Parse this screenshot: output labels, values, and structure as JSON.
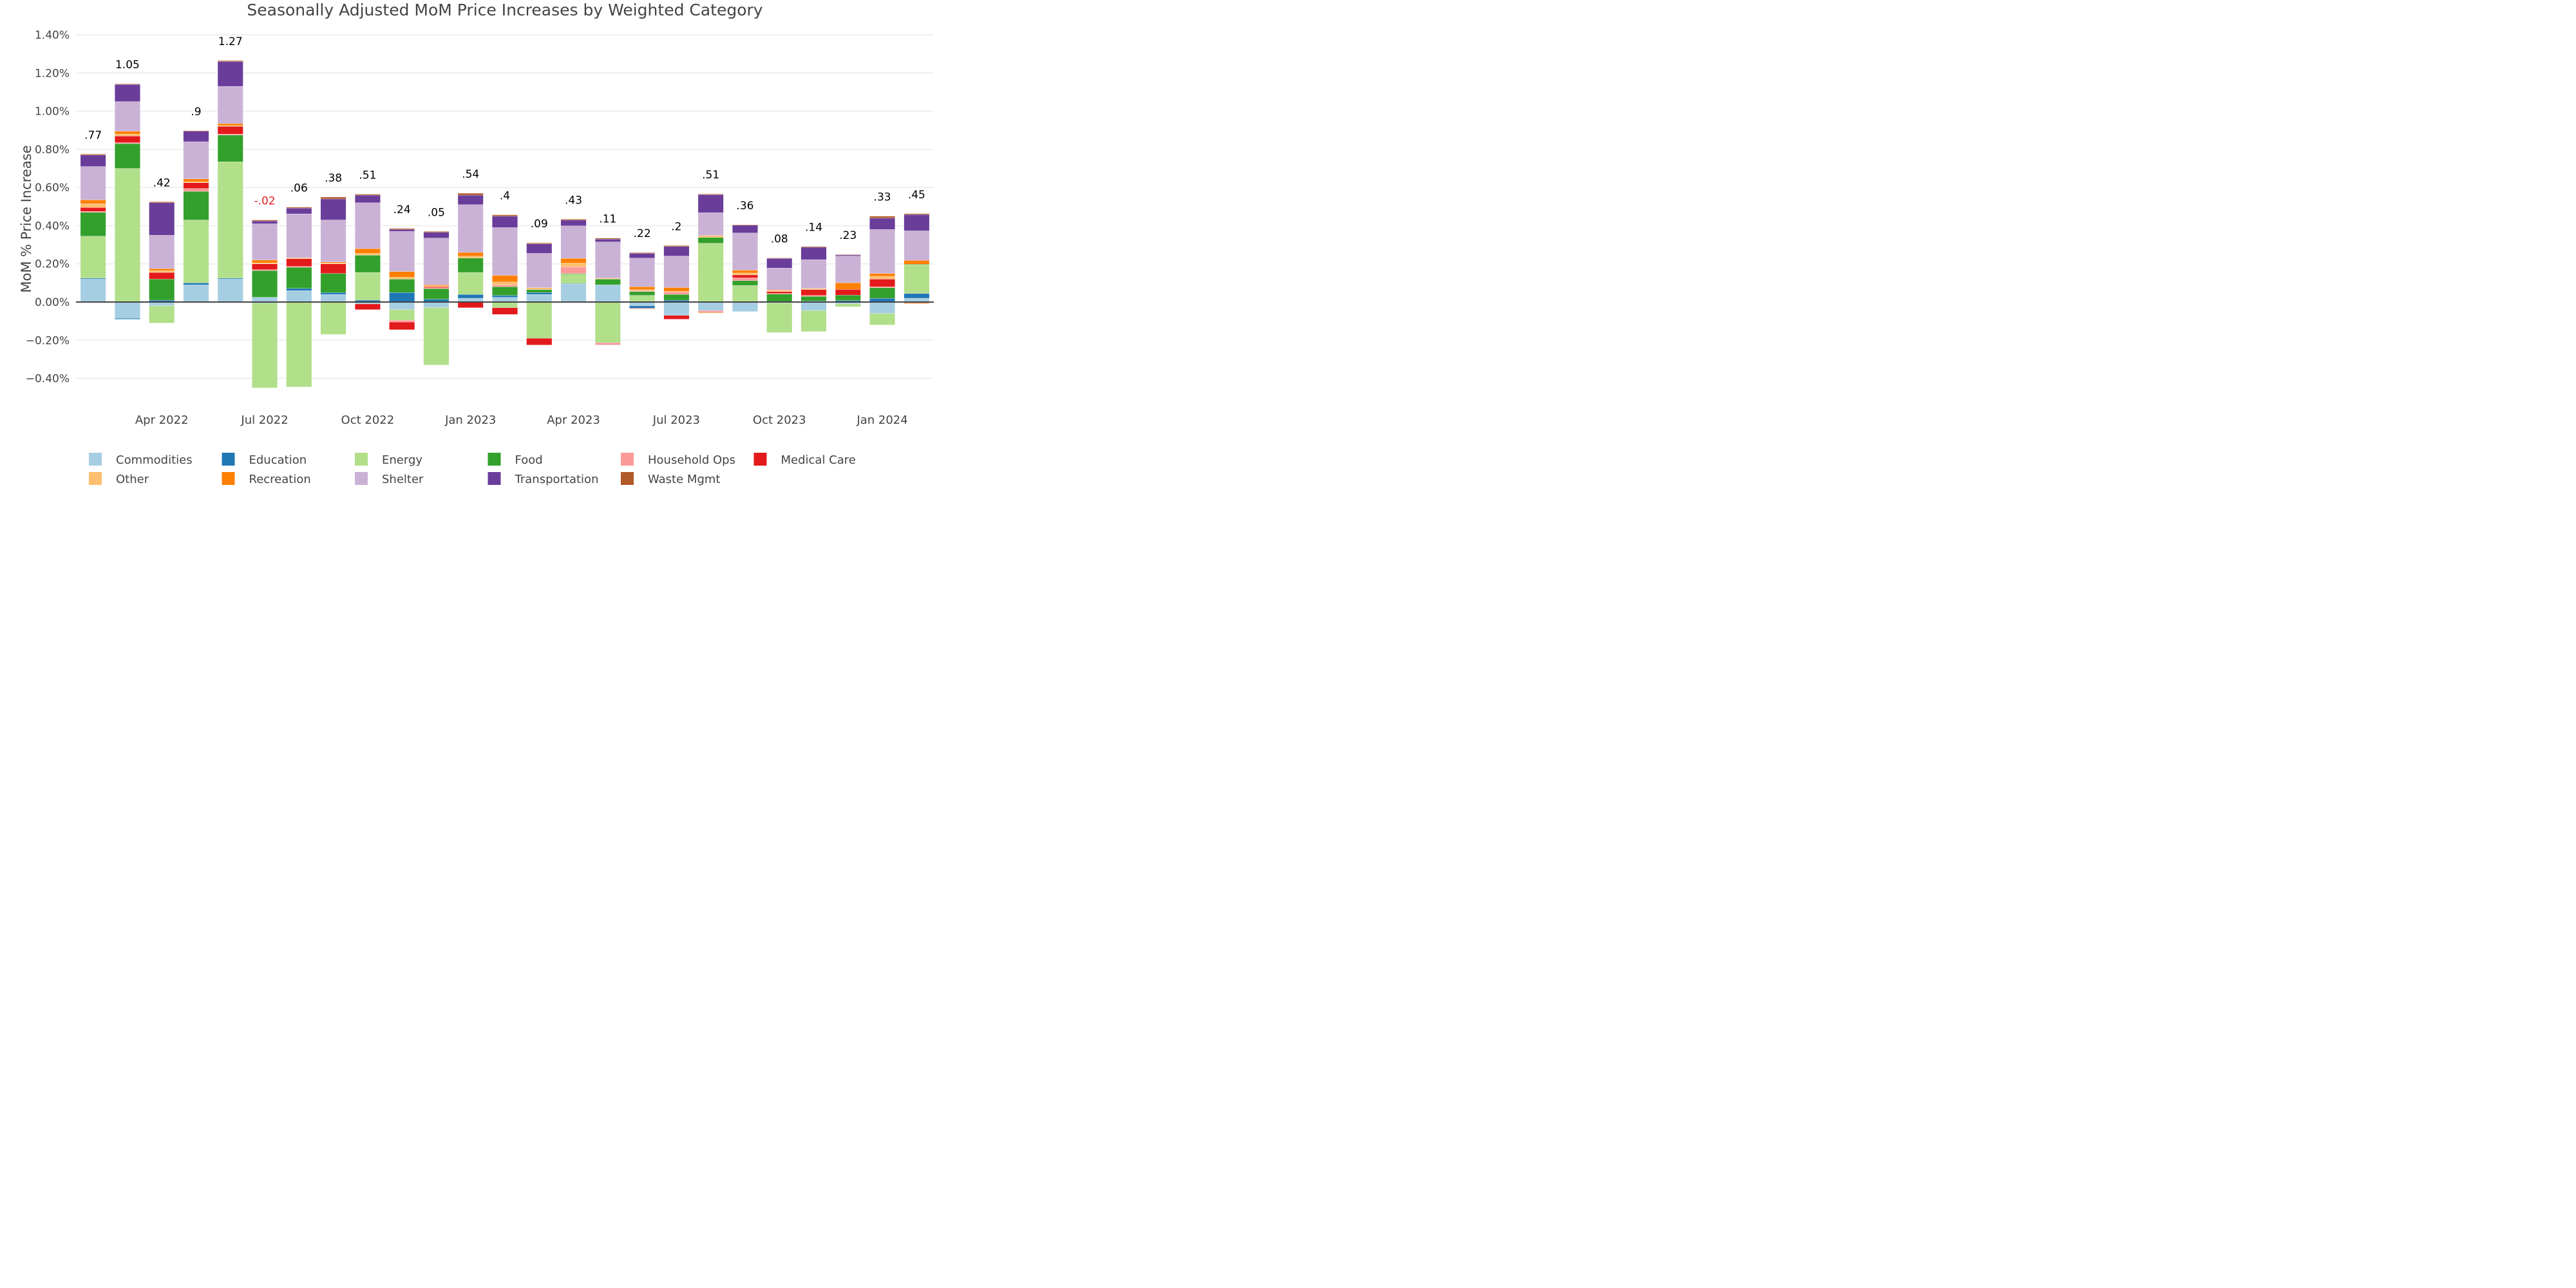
{
  "chart_data": {
    "type": "bar",
    "stacked": true,
    "title": "Seasonally Adjusted MoM Price Increases by Weighted Category",
    "xlabel": "",
    "ylabel": "MoM % Price Increase",
    "ylim": [
      -0.5,
      1.45
    ],
    "yticks": [
      -0.4,
      -0.2,
      0.0,
      0.2,
      0.4,
      0.6,
      0.8,
      1.0,
      1.2,
      1.4
    ],
    "ytick_labels": [
      "−0.40%",
      "−0.20%",
      "0.00%",
      "0.20%",
      "0.40%",
      "0.60%",
      "0.80%",
      "1.00%",
      "1.20%",
      "1.40%"
    ],
    "grid": true,
    "legend_position": "bottom",
    "categories": [
      "Feb 2022",
      "Mar 2022",
      "Apr 2022",
      "May 2022",
      "Jun 2022",
      "Jul 2022",
      "Aug 2022",
      "Sep 2022",
      "Oct 2022",
      "Nov 2022",
      "Dec 2022",
      "Jan 2023",
      "Feb 2023",
      "Mar 2023",
      "Apr 2023",
      "May 2023",
      "Jun 2023",
      "Jul 2023",
      "Aug 2023",
      "Sep 2023",
      "Oct 2023",
      "Nov 2023",
      "Dec 2023",
      "Jan 2024",
      "Feb 2024"
    ],
    "xtick_labels": [
      {
        "index": 2,
        "label": "Apr 2022"
      },
      {
        "index": 5,
        "label": "Jul 2022"
      },
      {
        "index": 8,
        "label": "Oct 2022"
      },
      {
        "index": 11,
        "label": "Jan 2023"
      },
      {
        "index": 14,
        "label": "Apr 2023"
      },
      {
        "index": 17,
        "label": "Jul 2023"
      },
      {
        "index": 20,
        "label": "Oct 2023"
      },
      {
        "index": 23,
        "label": "Jan 2024"
      }
    ],
    "totals": [
      ".77",
      "1.05",
      ".42",
      ".9",
      "1.27",
      "-.02",
      ".06",
      ".38",
      ".51",
      ".24",
      ".05",
      ".54",
      ".4",
      ".09",
      ".43",
      ".11",
      ".22",
      ".2",
      ".51",
      ".36",
      ".08",
      ".14",
      ".23",
      ".33",
      ".45"
    ],
    "total_colors": {
      "positive": "#000000",
      "negative": "#e31a1c"
    },
    "series": [
      {
        "name": "Commodities",
        "color": "#a6cee3",
        "values": [
          0.12,
          -0.085,
          -0.02,
          0.09,
          0.12,
          0.025,
          0.06,
          0.04,
          -0.01,
          -0.04,
          -0.03,
          0.02,
          0.025,
          0.04,
          0.095,
          0.09,
          -0.02,
          -0.07,
          -0.045,
          -0.05,
          -0.005,
          -0.045,
          -0.01,
          -0.06,
          0.02
        ]
      },
      {
        "name": "Education",
        "color": "#1f78b4",
        "values": [
          0.005,
          -0.005,
          0.01,
          0.01,
          0.005,
          -0.005,
          0.012,
          0.01,
          0.01,
          0.05,
          0.015,
          0.02,
          0.01,
          0.01,
          0.002,
          -0.003,
          -0.012,
          0.01,
          0.003,
          0.002,
          0.002,
          0.005,
          0.008,
          0.02,
          0.025
        ]
      },
      {
        "name": "Energy",
        "color": "#b2df8a",
        "values": [
          0.22,
          0.7,
          -0.09,
          0.33,
          0.61,
          -0.445,
          -0.445,
          -0.17,
          0.145,
          -0.055,
          -0.3,
          0.115,
          -0.03,
          -0.19,
          0.05,
          -0.21,
          0.035,
          0.0,
          0.305,
          0.085,
          -0.155,
          -0.11,
          -0.015,
          -0.06,
          0.15
        ]
      },
      {
        "name": "Food",
        "color": "#33a02c",
        "values": [
          0.125,
          0.13,
          0.11,
          0.15,
          0.14,
          0.14,
          0.11,
          0.1,
          0.09,
          0.07,
          0.055,
          0.075,
          0.045,
          0.015,
          0.002,
          0.03,
          0.02,
          0.03,
          0.03,
          0.025,
          0.04,
          0.025,
          0.028,
          0.055,
          0.003
        ]
      },
      {
        "name": "Household Ops",
        "color": "#fb9a99",
        "values": [
          0.005,
          0.005,
          0.0,
          0.015,
          0.005,
          0.005,
          0.005,
          0.0,
          0.0,
          -0.01,
          0.005,
          0.0,
          0.01,
          0.0,
          0.035,
          -0.008,
          0.005,
          0.015,
          -0.008,
          0.015,
          0.003,
          0.005,
          0.0,
          0.005,
          -0.003
        ]
      },
      {
        "name": "Medical Care",
        "color": "#e31a1c",
        "values": [
          0.02,
          0.035,
          0.035,
          0.03,
          0.04,
          0.03,
          0.04,
          0.05,
          -0.03,
          -0.04,
          0.005,
          -0.03,
          -0.035,
          -0.035,
          -0.003,
          -0.003,
          -0.003,
          -0.02,
          -0.002,
          0.015,
          0.01,
          0.03,
          0.03,
          0.04,
          -0.002
        ]
      },
      {
        "name": "Other",
        "color": "#fdbf6f",
        "values": [
          0.02,
          0.01,
          0.01,
          0.005,
          0.005,
          0.005,
          0.005,
          0.005,
          0.01,
          0.01,
          0.005,
          0.01,
          0.015,
          0.01,
          0.02,
          0.005,
          0.005,
          0.001,
          0.01,
          0.01,
          0.005,
          0.005,
          0.0,
          0.015,
          -0.005
        ]
      },
      {
        "name": "Recreation",
        "color": "#ff7f00",
        "values": [
          0.02,
          0.015,
          0.01,
          0.015,
          0.01,
          0.015,
          0.0,
          0.005,
          0.025,
          0.03,
          0.005,
          0.02,
          0.035,
          0.0,
          0.025,
          0.0,
          0.015,
          0.02,
          -0.002,
          0.015,
          0.003,
          0.002,
          0.035,
          0.015,
          0.02
        ]
      },
      {
        "name": "Shelter",
        "color": "#cab2d6",
        "values": [
          0.175,
          0.155,
          0.175,
          0.195,
          0.195,
          0.19,
          0.23,
          0.22,
          0.24,
          0.21,
          0.245,
          0.25,
          0.25,
          0.18,
          0.17,
          0.19,
          0.15,
          0.165,
          0.12,
          0.195,
          0.115,
          0.15,
          0.14,
          0.23,
          0.155
        ]
      },
      {
        "name": "Transportation",
        "color": "#6a3d9a",
        "values": [
          0.06,
          0.09,
          0.17,
          0.055,
          0.13,
          0.015,
          0.03,
          0.11,
          0.04,
          0.01,
          0.03,
          0.05,
          0.06,
          0.05,
          0.03,
          0.015,
          0.025,
          0.05,
          0.095,
          0.04,
          0.05,
          0.065,
          0.006,
          0.06,
          0.085
        ]
      },
      {
        "name": "Waste Mgmt",
        "color": "#b15928",
        "values": [
          0.005,
          0.003,
          0.005,
          0.003,
          0.005,
          0.005,
          0.005,
          0.01,
          0.005,
          0.005,
          0.005,
          0.01,
          0.007,
          0.005,
          0.005,
          0.005,
          0.004,
          0.005,
          0.003,
          0.003,
          0.003,
          0.004,
          0.002,
          0.01,
          0.005
        ]
      }
    ]
  }
}
